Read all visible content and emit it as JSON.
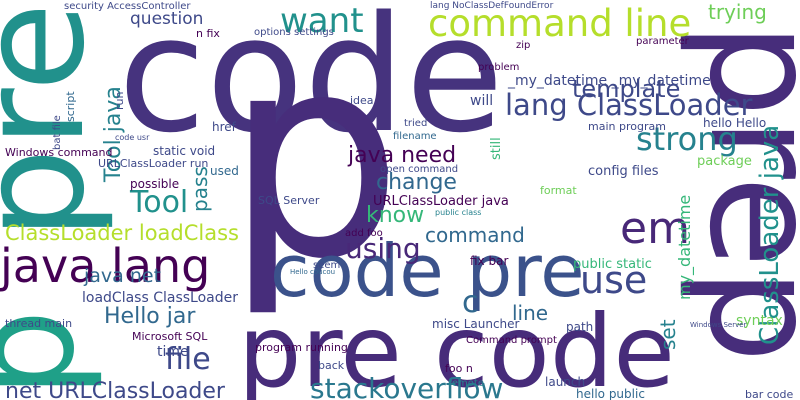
{
  "words": [
    "code",
    "p",
    "pre",
    "p",
    "prep",
    "pre code",
    "code pre",
    "command line",
    "want",
    "lang ClassLoader",
    "strong",
    "java lang",
    "ClassLoader loadClass",
    "template",
    "java need",
    "change",
    "know",
    "using",
    "command",
    "em",
    "use",
    "stackoverflow",
    "file",
    "net URLClassLoader",
    "Hello jar",
    "java net",
    "Tool",
    "Tool java",
    "ClassLoader java",
    "question",
    "trying",
    "_my_datetime _my_datetime",
    "will",
    "loadClass ClassLoader",
    "URLClassLoader java",
    "line",
    "my_datetime",
    "set",
    "pass",
    "public static",
    "syntax",
    "package",
    "hello Hello",
    "main program",
    "config files",
    "Windows command",
    "URLClassLoader run",
    "static void",
    "possible",
    "used",
    "Microsoft SQL",
    "time",
    "thread main",
    "href",
    "script",
    "SQL Server",
    "open command",
    "add foo",
    "misc Launcher",
    "Command prompt",
    "foo n",
    "launch",
    "hello public",
    "program running",
    "back",
    "bar code",
    "path",
    "c",
    "tried",
    "filename",
    "fix bar",
    "problem",
    "zip",
    "idea",
    "parameter",
    "security AccessController",
    "options settings",
    "n fix",
    "still",
    "remote",
    "lang NoClassDefFoundError",
    "Windows Server",
    "code usr",
    "seem",
    "Hello coucou",
    "public class",
    "format",
    "bat file",
    "run"
  ]
}
